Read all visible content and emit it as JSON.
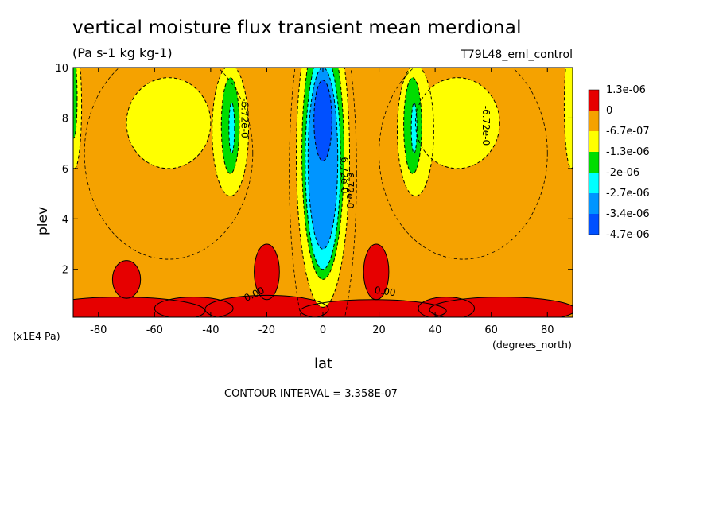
{
  "title": "vertical moisture flux transient mean merdional",
  "units": "(Pa s-1 kg kg-1)",
  "run": "T79L48_eml_control",
  "contour_interval": "CONTOUR INTERVAL = 3.358E-07",
  "chart_data": {
    "type": "heatmap",
    "title": "vertical moisture flux transient mean merdional",
    "xlabel": "lat",
    "x_units": "(degrees_north)",
    "ylabel": "plev",
    "y_units": "(x1E4 Pa)",
    "xlim": [
      -89,
      89
    ],
    "ylim": [
      10,
      0.1
    ],
    "x_ticks": [
      "-80",
      "-60",
      "-40",
      "-20",
      "0",
      "20",
      "40",
      "60",
      "80"
    ],
    "y_ticks": [
      "2",
      "4",
      "6",
      "8",
      "10"
    ],
    "x_tick_values": [
      -80,
      -60,
      -40,
      -20,
      0,
      20,
      40,
      60,
      80
    ],
    "y_tick_values": [
      2,
      4,
      6,
      8,
      10
    ],
    "colorbar": {
      "labels": [
        "1.3e-06",
        "0",
        "-6.7e-07",
        "-1.3e-06",
        "-2e-06",
        "-2.7e-06",
        "-3.4e-06",
        "-4.7e-06"
      ],
      "colors": [
        "#e60000",
        "#f5a200",
        "#ffff00",
        "#00dd00",
        "#00ffff",
        "#0095ff",
        "#0050ff"
      ]
    },
    "contour_labels": [
      "0.00",
      "0.00",
      "-6.72e-0",
      "-6.72e-0",
      "-6.72e-0",
      "-6.72e-0"
    ],
    "features": [
      {
        "name": "equatorial minimum",
        "lat": 0,
        "plev": 8,
        "value": -4.7e-06
      },
      {
        "name": "southern minimum",
        "lat": -33,
        "plev": 7.8,
        "value": -2e-06
      },
      {
        "name": "northern minimum",
        "lat": 32,
        "plev": 7.8,
        "value": -2e-06
      },
      {
        "name": "upper positive band",
        "plev": 0.5,
        "value": 1.3e-06
      }
    ]
  }
}
